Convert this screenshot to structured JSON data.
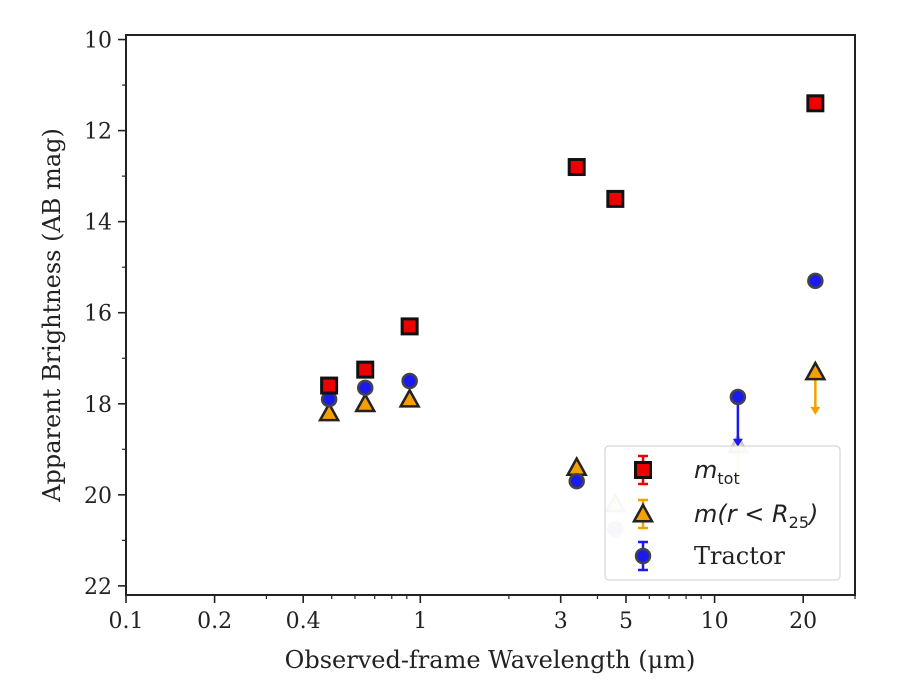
{
  "chart_data": {
    "type": "scatter",
    "xlabel": "Observed-frame Wavelength (μm)",
    "ylabel": "Apparent Brightness (AB mag)",
    "xscale": "log",
    "xlim": [
      0.1,
      30
    ],
    "ylim": [
      22.2,
      9.9
    ],
    "y_inverted": true,
    "x_ticks": [
      0.1,
      0.2,
      0.4,
      1,
      3,
      5,
      10,
      20
    ],
    "x_tick_labels": [
      "0.1",
      "0.2",
      "0.4",
      "1",
      "3",
      "5",
      "10",
      "20"
    ],
    "y_ticks": [
      10,
      12,
      14,
      16,
      18,
      20,
      22
    ],
    "y_tick_labels": [
      "10",
      "12",
      "14",
      "16",
      "18",
      "20",
      "22"
    ],
    "grid": false,
    "legend_position": "bottom-right",
    "series": [
      {
        "name": "m_tot",
        "legend_main": "m",
        "legend_sub": "tot",
        "marker": "square",
        "color": "#ee0000",
        "points": [
          {
            "x": 0.49,
            "y": 17.6
          },
          {
            "x": 0.65,
            "y": 17.25
          },
          {
            "x": 0.92,
            "y": 16.3
          },
          {
            "x": 3.4,
            "y": 12.8
          },
          {
            "x": 4.6,
            "y": 13.5
          },
          {
            "x": 22,
            "y": 11.4
          }
        ]
      },
      {
        "name": "m(r < R25)",
        "legend_main": "m(r < R",
        "legend_sub": "25",
        "legend_tail": ")",
        "marker": "triangle",
        "color": "#f5a000",
        "points": [
          {
            "x": 0.49,
            "y": 18.2
          },
          {
            "x": 0.65,
            "y": 18.0
          },
          {
            "x": 0.92,
            "y": 17.9
          },
          {
            "x": 3.4,
            "y": 19.4
          },
          {
            "x": 4.6,
            "y": 20.2,
            "faded": true
          },
          {
            "x": 12,
            "y": 18.9,
            "upper_limit_to": 19.7,
            "faded": true
          },
          {
            "x": 22,
            "y": 17.3,
            "upper_limit_to": 18.2
          }
        ]
      },
      {
        "name": "Tractor",
        "legend_main": "Tractor",
        "marker": "circle",
        "color": "#1a1aee",
        "points": [
          {
            "x": 0.49,
            "y": 17.9
          },
          {
            "x": 0.65,
            "y": 17.65
          },
          {
            "x": 0.92,
            "y": 17.5
          },
          {
            "x": 3.4,
            "y": 19.7
          },
          {
            "x": 4.6,
            "y": 20.75,
            "faded": true
          },
          {
            "x": 12,
            "y": 17.85,
            "upper_limit_to": 18.9
          },
          {
            "x": 22,
            "y": 15.3
          }
        ]
      }
    ]
  }
}
